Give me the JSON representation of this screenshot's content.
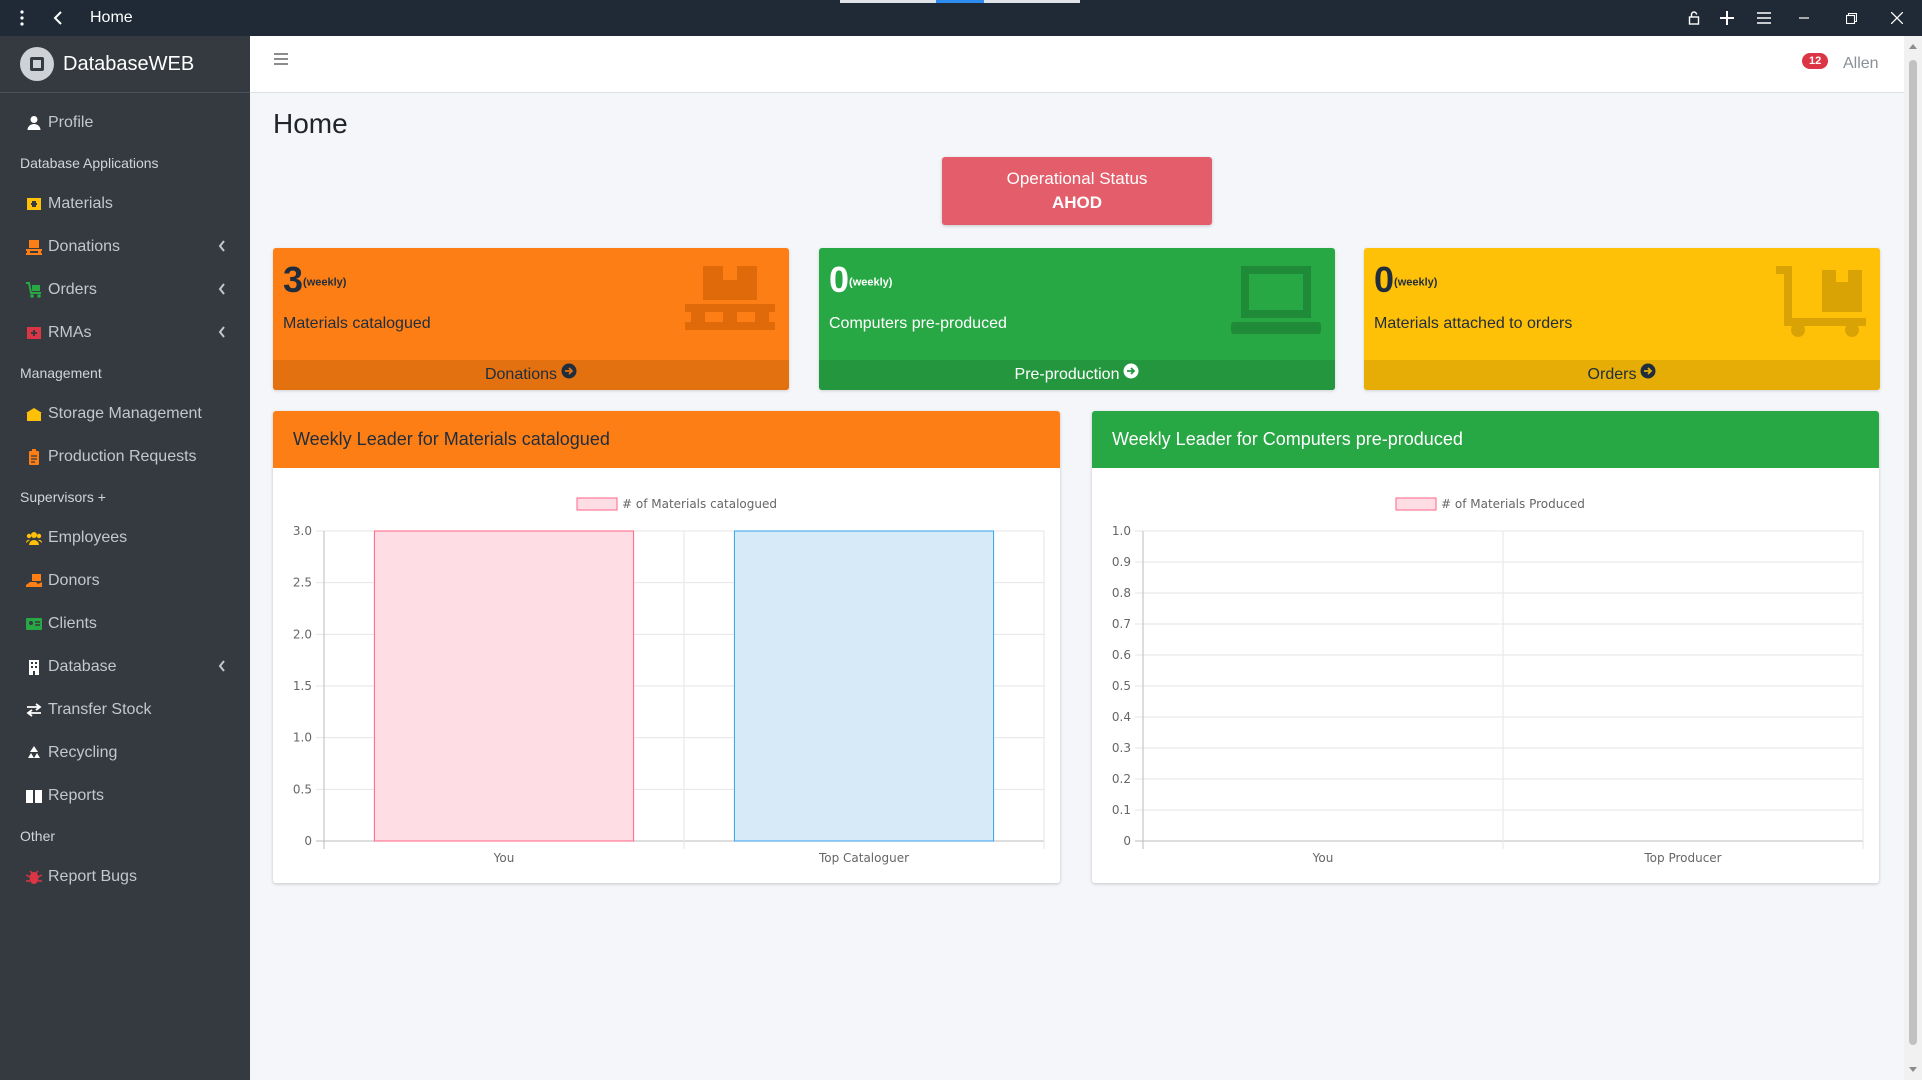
{
  "window": {
    "title": "Home",
    "icons": [
      "more-vertical-icon",
      "back-arrow-icon",
      "lock-icon",
      "plus-icon",
      "menu-icon",
      "minimize-icon",
      "restore-icon",
      "close-icon"
    ]
  },
  "sidebar": {
    "brand_bold": "Database",
    "brand_light": "WEB",
    "items": [
      {
        "type": "item",
        "label": "Profile",
        "icon": "user-icon",
        "color": "#ffffff"
      },
      {
        "type": "header",
        "label": "Database Applications"
      },
      {
        "type": "item",
        "label": "Materials",
        "icon": "materials-icon",
        "color": "#ffc107"
      },
      {
        "type": "item",
        "label": "Donations",
        "icon": "pallet-icon",
        "color": "#fd7e14",
        "arrow": true
      },
      {
        "type": "item",
        "label": "Orders",
        "icon": "cart-icon",
        "color": "#28a745",
        "arrow": true
      },
      {
        "type": "item",
        "label": "RMAs",
        "icon": "return-icon",
        "color": "#dc3545",
        "arrow": true
      },
      {
        "type": "header",
        "label": "Management"
      },
      {
        "type": "item",
        "label": "Storage Management",
        "icon": "warehouse-icon",
        "color": "#ffc107"
      },
      {
        "type": "item",
        "label": "Production Requests",
        "icon": "clipboard-icon",
        "color": "#fd7e14"
      },
      {
        "type": "header",
        "label": "Supervisors +"
      },
      {
        "type": "item",
        "label": "Employees",
        "icon": "users-icon",
        "color": "#ffc107"
      },
      {
        "type": "item",
        "label": "Donors",
        "icon": "hand-holding-icon",
        "color": "#fd7e14"
      },
      {
        "type": "item",
        "label": "Clients",
        "icon": "id-card-icon",
        "color": "#28a745"
      },
      {
        "type": "item",
        "label": "Database",
        "icon": "building-icon",
        "color": "#ffffff",
        "arrow": true
      },
      {
        "type": "item",
        "label": "Transfer Stock",
        "icon": "exchange-icon",
        "color": "#ffffff"
      },
      {
        "type": "item",
        "label": "Recycling",
        "icon": "recycle-icon",
        "color": "#ffffff"
      },
      {
        "type": "item",
        "label": "Reports",
        "icon": "book-icon",
        "color": "#ffffff"
      },
      {
        "type": "header",
        "label": "Other"
      },
      {
        "type": "item",
        "label": "Report Bugs",
        "icon": "bug-icon",
        "color": "#dc3545"
      }
    ]
  },
  "topbar": {
    "notification_count": "12",
    "user": "Allen"
  },
  "page": {
    "title": "Home",
    "status_label": "Operational Status",
    "status_value": "AHOD"
  },
  "stats": [
    {
      "value": "3",
      "period": "(weekly)",
      "label": "Materials catalogued",
      "link": "Donations",
      "icon": "pallet-icon",
      "color": "#fd7e14"
    },
    {
      "value": "0",
      "period": "(weekly)",
      "label": "Computers pre-produced",
      "link": "Pre-production",
      "icon": "laptop-icon",
      "color": "#28a745"
    },
    {
      "value": "0",
      "period": "(weekly)",
      "label": "Materials attached to orders",
      "link": "Orders",
      "icon": "dolly-icon",
      "color": "#ffc107"
    }
  ],
  "cards": {
    "left_title": "Weekly Leader for Materials catalogued",
    "right_title": "Weekly Leader for Computers pre-produced"
  },
  "chart_data": [
    {
      "type": "bar",
      "title": "",
      "categories": [
        "You",
        "Top Cataloguer"
      ],
      "series": [
        {
          "name": "# of Materials catalogued",
          "values": [
            3,
            3
          ]
        }
      ],
      "bar_colors": [
        "#ffdde4",
        "#d6eaf8"
      ],
      "bar_borders": [
        "#ff6384",
        "#36a2eb"
      ],
      "ylim": [
        0,
        3.0
      ],
      "yticks": [
        "0",
        "0.5",
        "1.0",
        "1.5",
        "2.0",
        "2.5",
        "3.0"
      ],
      "grid": true,
      "legend": "top"
    },
    {
      "type": "bar",
      "title": "",
      "categories": [
        "You",
        "Top Producer"
      ],
      "series": [
        {
          "name": "# of Materials Produced",
          "values": [
            0,
            0
          ]
        }
      ],
      "bar_colors": [
        "#ffdde4",
        "#d6eaf8"
      ],
      "bar_borders": [
        "#ff6384",
        "#36a2eb"
      ],
      "ylim": [
        0,
        1.0
      ],
      "yticks": [
        "0",
        "0.1",
        "0.2",
        "0.3",
        "0.4",
        "0.5",
        "0.6",
        "0.7",
        "0.8",
        "0.9",
        "1.0"
      ],
      "grid": true,
      "legend": "top"
    }
  ]
}
